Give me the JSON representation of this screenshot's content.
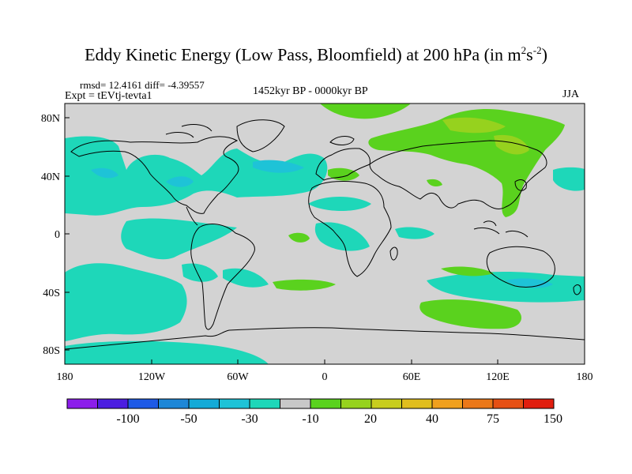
{
  "title": {
    "main": "Eddy Kinetic Energy (Low Pass, Bloomfield) at 200 hPa (in m",
    "sup1": "2",
    "mid": "s",
    "sup2": "-2",
    "close": ")"
  },
  "stats": "rmsd= 12.4161 diff= -4.39557",
  "expt": "Expt = tEVtj-tevta1",
  "period": "1452kyr BP - 0000kyr BP",
  "season": "JJA",
  "axes": {
    "lon_labels": [
      "180",
      "120W",
      "60W",
      "0",
      "60E",
      "120E",
      "180"
    ],
    "lat_labels": [
      "80N",
      "40N",
      "0",
      "40S",
      "80S"
    ]
  },
  "colorbar": {
    "labels": [
      "-100",
      "-50",
      "-30",
      "-10",
      "20",
      "40",
      "75",
      "150"
    ],
    "colors": [
      "#8c1eeb",
      "#4b1ee1",
      "#1e5ae6",
      "#1e87d7",
      "#14aad7",
      "#1ec3d7",
      "#1ed7b9",
      "#c8c8c8",
      "#5ad21e",
      "#96d21e",
      "#c8cd1e",
      "#e1be1e",
      "#f0a01e",
      "#eb7819",
      "#e65014",
      "#e11e0f"
    ]
  },
  "legend_colors": {
    "neutral": "#d3d3d3",
    "light_neg": "#1ed7b9",
    "mid_neg": "#1ec3d7",
    "strong_neg": "#14aad7",
    "light_pos": "#5ad21e",
    "mid_pos": "#96d21e"
  }
}
